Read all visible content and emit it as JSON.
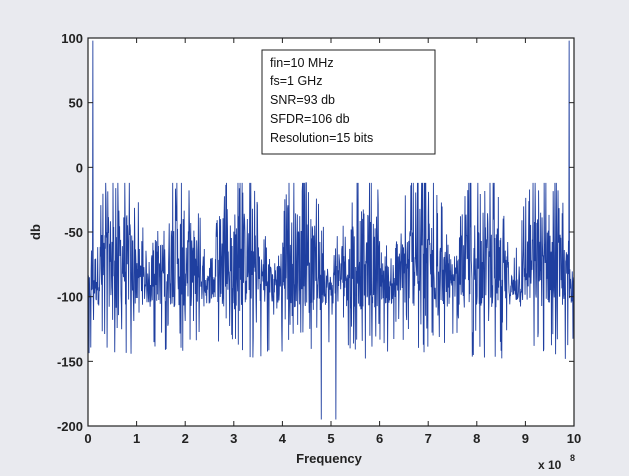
{
  "chart_data": {
    "type": "line",
    "xlabel": "Frequency",
    "ylabel": "db",
    "x_exponent_label": "x 10",
    "x_exponent_power": "8",
    "xlim": [
      0,
      10
    ],
    "ylim": [
      -200,
      100
    ],
    "xticks": [
      0,
      1,
      2,
      3,
      4,
      5,
      6,
      7,
      8,
      9,
      10
    ],
    "xtick_labels": [
      "0",
      "1",
      "2",
      "3",
      "4",
      "5",
      "6",
      "7",
      "8",
      "9",
      "10"
    ],
    "yticks": [
      100,
      50,
      0,
      -50,
      -100,
      -150,
      -200
    ],
    "ytick_labels": [
      "100",
      "50",
      "0",
      "-50",
      "-100",
      "-150",
      "-200"
    ],
    "grid": false,
    "series": [
      {
        "color": "#1f3fa0",
        "description_values": {
          "signal_peaks_x": [
            0.1,
            9.9
          ],
          "signal_peak_y": 98,
          "lobe_boundaries_x": [
            0,
            1.25,
            2.5,
            3.75,
            5.0,
            6.25,
            7.5,
            8.75,
            10
          ],
          "envelope_top_range": [
            -12,
            -50
          ],
          "noise_floor_range": [
            -60,
            -150
          ],
          "deep_nulls_x": [
            4.8,
            5.1
          ],
          "deep_null_y": -195
        }
      }
    ],
    "annotation": {
      "lines": [
        "fin=10 MHz",
        "fs=1 GHz",
        "SNR=93 db",
        "SFDR=106 db",
        "Resolution=15 bits"
      ]
    }
  },
  "colors": {
    "background": "#e9eaef",
    "plot_background": "#ffffff",
    "line": "#1f3fa0",
    "axis": "#222222"
  }
}
